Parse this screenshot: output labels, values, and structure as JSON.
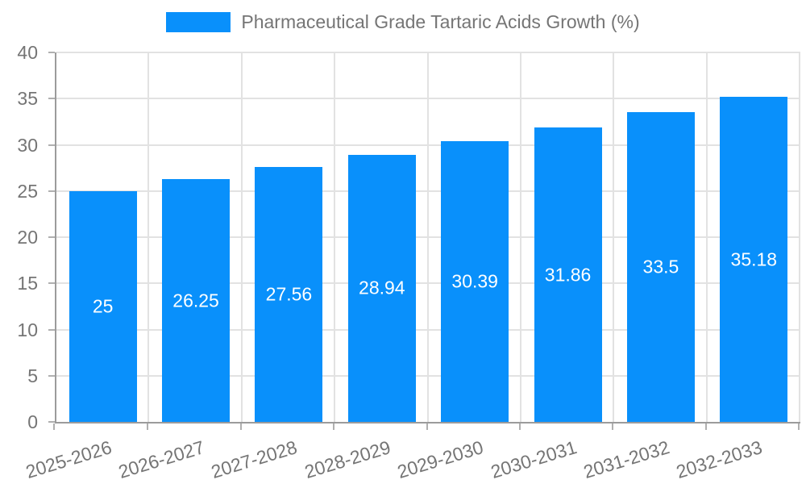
{
  "colors": {
    "bar": "#0990fb",
    "axis_text": "#757575",
    "grid": "#e2e2e2",
    "axis_line": "#9b9b9b",
    "value_label": "#ffffff",
    "background": "#ffffff"
  },
  "legend": {
    "label": "Pharmaceutical Grade Tartaric Acids Growth (%)"
  },
  "chart_data": {
    "type": "bar",
    "title": "Pharmaceutical Grade Tartaric Acids Growth (%)",
    "categories": [
      "2025-2026",
      "2026-2027",
      "2027-2028",
      "2028-2029",
      "2029-2030",
      "2030-2031",
      "2031-2032",
      "2032-2033"
    ],
    "values": [
      25,
      26.25,
      27.56,
      28.94,
      30.39,
      31.86,
      33.5,
      35.18
    ],
    "value_labels": [
      "25",
      "26.25",
      "27.56",
      "28.94",
      "30.39",
      "31.86",
      "33.5",
      "35.18"
    ],
    "xlabel": "",
    "ylabel": "",
    "ylim": [
      0,
      40
    ],
    "y_ticks": [
      0,
      5,
      10,
      15,
      20,
      25,
      30,
      35,
      40
    ],
    "grid": true,
    "legend_position": "top",
    "x_label_rotation_deg": -17,
    "value_label_position": "center-inside"
  }
}
